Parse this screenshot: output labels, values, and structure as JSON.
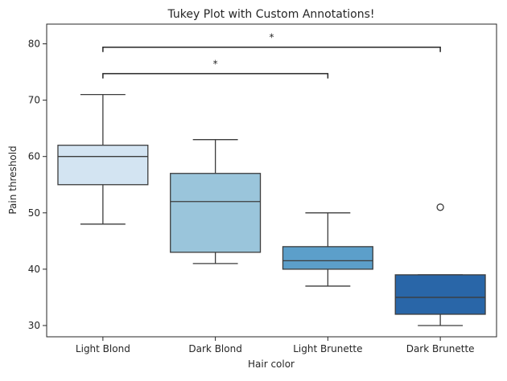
{
  "chart_data": {
    "type": "box",
    "title": "Tukey Plot with Custom Annotations!",
    "xlabel": "Hair color",
    "ylabel": "Pain threshold",
    "ylim": [
      28,
      83.5
    ],
    "yticks": [
      30,
      40,
      50,
      60,
      70,
      80
    ],
    "grid": false,
    "categories": [
      "Light Blond",
      "Dark Blond",
      "Light Brunette",
      "Dark Brunette"
    ],
    "colors": [
      "#d3e4f2",
      "#9ac5db",
      "#5c9fca",
      "#2966a8"
    ],
    "boxes": [
      {
        "name": "Light Blond",
        "whisker_low": 48,
        "q1": 55,
        "median": 60,
        "q3": 62,
        "whisker_high": 71,
        "outliers": []
      },
      {
        "name": "Dark Blond",
        "whisker_low": 41,
        "q1": 43,
        "median": 52,
        "q3": 57,
        "whisker_high": 63,
        "outliers": []
      },
      {
        "name": "Light Brunette",
        "whisker_low": 37,
        "q1": 40,
        "median": 41.5,
        "q3": 44,
        "whisker_high": 50,
        "outliers": []
      },
      {
        "name": "Dark Brunette",
        "whisker_low": 30,
        "q1": 32,
        "median": 35,
        "q3": 39,
        "whisker_high": 39,
        "outliers": [
          51
        ]
      }
    ],
    "annotations": [
      {
        "from": "Light Blond",
        "to": "Light Brunette",
        "y": 74.7,
        "label": "*"
      },
      {
        "from": "Light Blond",
        "to": "Dark Brunette",
        "y": 79.4,
        "label": "*"
      }
    ]
  }
}
